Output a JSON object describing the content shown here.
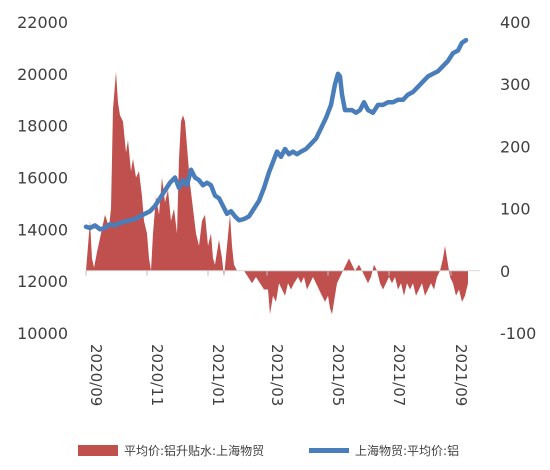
{
  "chart_data": {
    "type": "bar+line",
    "x_ticks": [
      "2020/09",
      "2020/11",
      "2021/01",
      "2021/03",
      "2021/05",
      "2021/07",
      "2021/09"
    ],
    "x_range": [
      "2020-09-01",
      "2021-09-30"
    ],
    "left_axis": {
      "ticks": [
        10000,
        12000,
        14000,
        16000,
        18000,
        20000,
        22000
      ],
      "ylim": [
        10000,
        22000
      ]
    },
    "right_axis": {
      "ticks": [
        -100,
        0,
        100,
        200,
        300,
        400
      ],
      "ylim": [
        -100,
        400
      ]
    },
    "grid": false,
    "legend_position": "bottom",
    "series": [
      {
        "name": "平均价:铝升贴水:上海物贸",
        "type": "area",
        "axis": "right",
        "color": "#c0504d",
        "points": [
          [
            "2020-09-01",
            0
          ],
          [
            "2020-09-03",
            40
          ],
          [
            "2020-09-05",
            80
          ],
          [
            "2020-09-07",
            20
          ],
          [
            "2020-09-09",
            5
          ],
          [
            "2020-09-12",
            30
          ],
          [
            "2020-09-16",
            60
          ],
          [
            "2020-09-20",
            90
          ],
          [
            "2020-09-24",
            70
          ],
          [
            "2020-09-26",
            100
          ],
          [
            "2020-09-28",
            260
          ],
          [
            "2020-10-01",
            320
          ],
          [
            "2020-10-03",
            270
          ],
          [
            "2020-10-05",
            250
          ],
          [
            "2020-10-08",
            240
          ],
          [
            "2020-10-11",
            190
          ],
          [
            "2020-10-13",
            210
          ],
          [
            "2020-10-16",
            160
          ],
          [
            "2020-10-18",
            180
          ],
          [
            "2020-10-21",
            150
          ],
          [
            "2020-10-24",
            160
          ],
          [
            "2020-10-27",
            120
          ],
          [
            "2020-10-29",
            80
          ],
          [
            "2020-11-01",
            60
          ],
          [
            "2020-11-03",
            20
          ],
          [
            "2020-11-05",
            0
          ],
          [
            "2020-11-07",
            60
          ],
          [
            "2020-11-10",
            120
          ],
          [
            "2020-11-13",
            90
          ],
          [
            "2020-11-16",
            150
          ],
          [
            "2020-11-19",
            110
          ],
          [
            "2020-11-22",
            130
          ],
          [
            "2020-11-25",
            80
          ],
          [
            "2020-11-28",
            100
          ],
          [
            "2020-12-01",
            60
          ],
          [
            "2020-12-03",
            180
          ],
          [
            "2020-12-05",
            240
          ],
          [
            "2020-12-07",
            250
          ],
          [
            "2020-12-09",
            240
          ],
          [
            "2020-12-11",
            200
          ],
          [
            "2020-12-14",
            140
          ],
          [
            "2020-12-17",
            100
          ],
          [
            "2020-12-20",
            60
          ],
          [
            "2020-12-23",
            40
          ],
          [
            "2020-12-26",
            80
          ],
          [
            "2020-12-29",
            90
          ],
          [
            "2021-01-01",
            40
          ],
          [
            "2021-01-04",
            60
          ],
          [
            "2021-01-06",
            20
          ],
          [
            "2021-01-08",
            10
          ],
          [
            "2021-01-10",
            30
          ],
          [
            "2021-01-12",
            50
          ],
          [
            "2021-01-15",
            20
          ],
          [
            "2021-01-17",
            -10
          ],
          [
            "2021-01-20",
            40
          ],
          [
            "2021-01-23",
            90
          ],
          [
            "2021-01-25",
            40
          ],
          [
            "2021-01-27",
            10
          ],
          [
            "2021-01-30",
            0
          ],
          [
            "2021-02-02",
            0
          ],
          [
            "2021-02-06",
            0
          ],
          [
            "2021-02-10",
            -10
          ],
          [
            "2021-02-14",
            -20
          ],
          [
            "2021-02-18",
            -10
          ],
          [
            "2021-02-22",
            -20
          ],
          [
            "2021-02-26",
            -30
          ],
          [
            "2021-03-02",
            -30
          ],
          [
            "2021-03-04",
            -70
          ],
          [
            "2021-03-07",
            -40
          ],
          [
            "2021-03-10",
            -50
          ],
          [
            "2021-03-13",
            -20
          ],
          [
            "2021-03-16",
            -30
          ],
          [
            "2021-03-19",
            -40
          ],
          [
            "2021-03-22",
            -20
          ],
          [
            "2021-03-25",
            -30
          ],
          [
            "2021-03-28",
            -20
          ],
          [
            "2021-04-01",
            -10
          ],
          [
            "2021-04-04",
            -20
          ],
          [
            "2021-04-07",
            -10
          ],
          [
            "2021-04-10",
            -30
          ],
          [
            "2021-04-13",
            -20
          ],
          [
            "2021-04-16",
            -10
          ],
          [
            "2021-04-19",
            -20
          ],
          [
            "2021-04-22",
            -30
          ],
          [
            "2021-04-25",
            -40
          ],
          [
            "2021-04-28",
            -50
          ],
          [
            "2021-05-01",
            -40
          ],
          [
            "2021-05-03",
            -60
          ],
          [
            "2021-05-05",
            -70
          ],
          [
            "2021-05-07",
            -50
          ],
          [
            "2021-05-10",
            -20
          ],
          [
            "2021-05-13",
            -10
          ],
          [
            "2021-05-16",
            0
          ],
          [
            "2021-05-19",
            10
          ],
          [
            "2021-05-22",
            20
          ],
          [
            "2021-05-25",
            10
          ],
          [
            "2021-05-28",
            0
          ],
          [
            "2021-06-01",
            10
          ],
          [
            "2021-06-04",
            0
          ],
          [
            "2021-06-07",
            -10
          ],
          [
            "2021-06-10",
            -20
          ],
          [
            "2021-06-13",
            -10
          ],
          [
            "2021-06-16",
            10
          ],
          [
            "2021-06-19",
            0
          ],
          [
            "2021-06-22",
            -20
          ],
          [
            "2021-06-25",
            -30
          ],
          [
            "2021-06-28",
            -20
          ],
          [
            "2021-07-01",
            -10
          ],
          [
            "2021-07-04",
            -20
          ],
          [
            "2021-07-07",
            -10
          ],
          [
            "2021-07-10",
            -30
          ],
          [
            "2021-07-13",
            -20
          ],
          [
            "2021-07-16",
            -40
          ],
          [
            "2021-07-19",
            -20
          ],
          [
            "2021-07-22",
            -30
          ],
          [
            "2021-07-25",
            -20
          ],
          [
            "2021-07-28",
            -40
          ],
          [
            "2021-07-31",
            -30
          ],
          [
            "2021-08-03",
            -20
          ],
          [
            "2021-08-06",
            -40
          ],
          [
            "2021-08-09",
            -30
          ],
          [
            "2021-08-12",
            -20
          ],
          [
            "2021-08-15",
            -30
          ],
          [
            "2021-08-18",
            -10
          ],
          [
            "2021-08-21",
            0
          ],
          [
            "2021-08-24",
            20
          ],
          [
            "2021-08-26",
            40
          ],
          [
            "2021-08-28",
            20
          ],
          [
            "2021-08-31",
            -10
          ],
          [
            "2021-09-03",
            -20
          ],
          [
            "2021-09-06",
            -40
          ],
          [
            "2021-09-09",
            -30
          ],
          [
            "2021-09-12",
            -50
          ],
          [
            "2021-09-15",
            -40
          ],
          [
            "2021-09-18",
            -20
          ]
        ]
      },
      {
        "name": "上海物贸:平均价:铝",
        "type": "line",
        "axis": "left",
        "color": "#4a7ebb",
        "points": [
          [
            "2020-09-01",
            14100
          ],
          [
            "2020-09-05",
            14050
          ],
          [
            "2020-09-10",
            14150
          ],
          [
            "2020-09-15",
            14000
          ],
          [
            "2020-09-20",
            14050
          ],
          [
            "2020-09-25",
            14200
          ],
          [
            "2020-09-30",
            14150
          ],
          [
            "2020-10-05",
            14250
          ],
          [
            "2020-10-10",
            14300
          ],
          [
            "2020-10-15",
            14350
          ],
          [
            "2020-10-20",
            14400
          ],
          [
            "2020-10-25",
            14500
          ],
          [
            "2020-10-30",
            14600
          ],
          [
            "2020-11-04",
            14700
          ],
          [
            "2020-11-09",
            14900
          ],
          [
            "2020-11-14",
            15200
          ],
          [
            "2020-11-19",
            15500
          ],
          [
            "2020-11-24",
            15800
          ],
          [
            "2020-11-29",
            16000
          ],
          [
            "2020-12-03",
            15600
          ],
          [
            "2020-12-07",
            15900
          ],
          [
            "2020-12-11",
            15700
          ],
          [
            "2020-12-15",
            16300
          ],
          [
            "2020-12-19",
            16000
          ],
          [
            "2020-12-23",
            15900
          ],
          [
            "2020-12-27",
            15700
          ],
          [
            "2020-12-31",
            15800
          ],
          [
            "2021-01-04",
            15700
          ],
          [
            "2021-01-08",
            15300
          ],
          [
            "2021-01-12",
            15200
          ],
          [
            "2021-01-16",
            14900
          ],
          [
            "2021-01-20",
            14600
          ],
          [
            "2021-01-24",
            14700
          ],
          [
            "2021-01-28",
            14500
          ],
          [
            "2021-02-01",
            14350
          ],
          [
            "2021-02-06",
            14400
          ],
          [
            "2021-02-11",
            14500
          ],
          [
            "2021-02-16",
            14800
          ],
          [
            "2021-02-21",
            15100
          ],
          [
            "2021-02-26",
            15600
          ],
          [
            "2021-03-03",
            16200
          ],
          [
            "2021-03-07",
            16600
          ],
          [
            "2021-03-11",
            17000
          ],
          [
            "2021-03-15",
            16800
          ],
          [
            "2021-03-19",
            17100
          ],
          [
            "2021-03-23",
            16900
          ],
          [
            "2021-03-27",
            17000
          ],
          [
            "2021-03-31",
            16900
          ],
          [
            "2021-04-04",
            17000
          ],
          [
            "2021-04-09",
            17100
          ],
          [
            "2021-04-14",
            17300
          ],
          [
            "2021-04-19",
            17500
          ],
          [
            "2021-04-24",
            17900
          ],
          [
            "2021-04-29",
            18300
          ],
          [
            "2021-05-04",
            18800
          ],
          [
            "2021-05-08",
            19600
          ],
          [
            "2021-05-11",
            20000
          ],
          [
            "2021-05-13",
            19900
          ],
          [
            "2021-05-15",
            19200
          ],
          [
            "2021-05-18",
            18600
          ],
          [
            "2021-05-21",
            18600
          ],
          [
            "2021-05-25",
            18600
          ],
          [
            "2021-05-29",
            18500
          ],
          [
            "2021-06-02",
            18600
          ],
          [
            "2021-06-06",
            18900
          ],
          [
            "2021-06-10",
            18600
          ],
          [
            "2021-06-15",
            18500
          ],
          [
            "2021-06-20",
            18800
          ],
          [
            "2021-06-25",
            18800
          ],
          [
            "2021-06-30",
            18900
          ],
          [
            "2021-07-05",
            18900
          ],
          [
            "2021-07-10",
            19000
          ],
          [
            "2021-07-15",
            19000
          ],
          [
            "2021-07-20",
            19200
          ],
          [
            "2021-07-25",
            19300
          ],
          [
            "2021-07-30",
            19500
          ],
          [
            "2021-08-04",
            19700
          ],
          [
            "2021-08-09",
            19900
          ],
          [
            "2021-08-14",
            20000
          ],
          [
            "2021-08-19",
            20100
          ],
          [
            "2021-08-24",
            20300
          ],
          [
            "2021-08-29",
            20500
          ],
          [
            "2021-09-03",
            20800
          ],
          [
            "2021-09-08",
            20900
          ],
          [
            "2021-09-12",
            21200
          ],
          [
            "2021-09-16",
            21300
          ]
        ]
      }
    ]
  },
  "legend": {
    "item1_label": "平均价:铝升贴水:上海物贸",
    "item2_label": "上海物贸:平均价:铝"
  }
}
